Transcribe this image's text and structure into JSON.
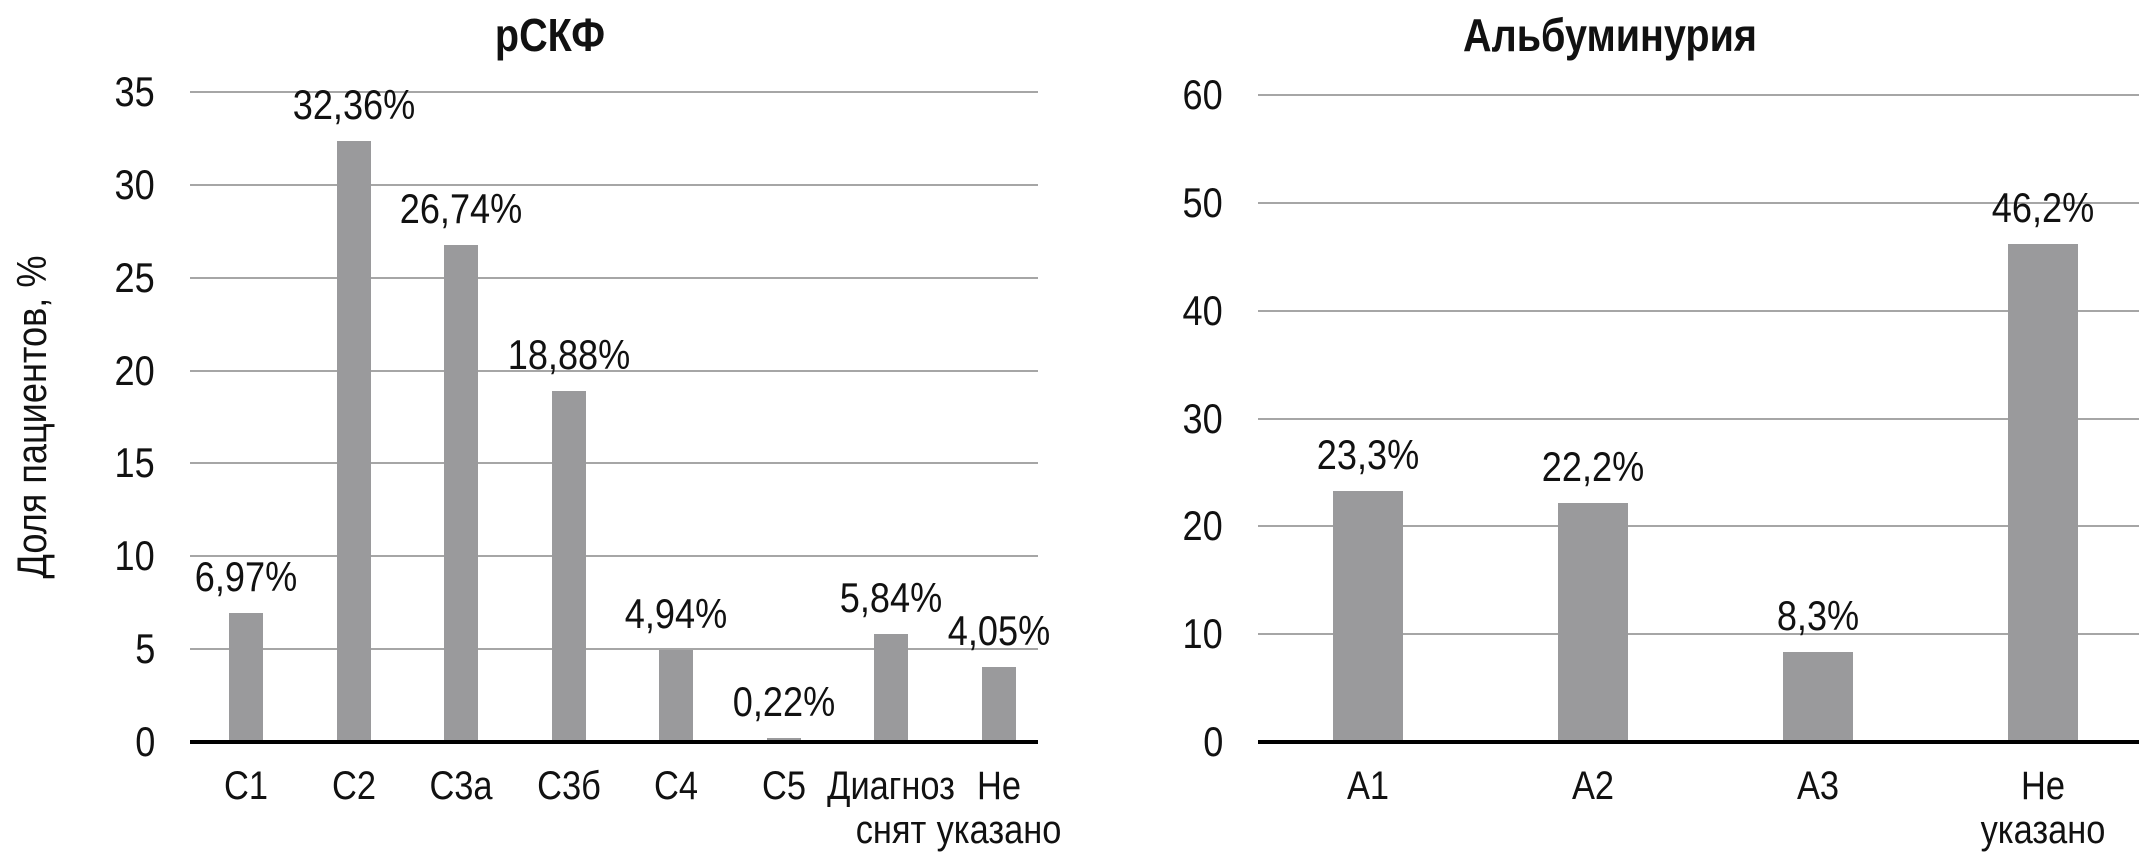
{
  "page": {
    "background": "#ffffff"
  },
  "chart_data": [
    {
      "type": "bar",
      "title": "рСКФ",
      "ylabel": "Доля пациентов, %",
      "xlabel": "",
      "categories": [
        "С1",
        "С2",
        "С3а",
        "С3б",
        "С4",
        "С5",
        "Диагноз\nснят",
        "Не\nуказано"
      ],
      "values": [
        6.97,
        32.36,
        26.74,
        18.88,
        4.94,
        0.22,
        5.84,
        4.05
      ],
      "value_labels": [
        "6,97%",
        "32,36%",
        "26,74%",
        "18,88%",
        "4,94%",
        "0,22%",
        "5,84%",
        "4,05%"
      ],
      "ylim": [
        0,
        35
      ],
      "yticks": [
        0,
        5,
        10,
        15,
        20,
        25,
        30,
        35
      ],
      "grid": true,
      "legend": "none",
      "bar_color": "#9a9a9c",
      "gridline_color": "#a6a6a6",
      "axis_color": "#000000"
    },
    {
      "type": "bar",
      "title": "Альбуминурия",
      "ylabel": "",
      "xlabel": "",
      "categories": [
        "А1",
        "А2",
        "А3",
        "Не\nуказано"
      ],
      "values": [
        23.3,
        22.2,
        8.3,
        46.2
      ],
      "value_labels": [
        "23,3%",
        "22,2%",
        "8,3%",
        "46,2%"
      ],
      "ylim": [
        0,
        60
      ],
      "yticks": [
        0,
        10,
        20,
        30,
        40,
        50,
        60
      ],
      "grid": true,
      "legend": "none",
      "bar_color": "#9a9a9c",
      "gridline_color": "#a6a6a6",
      "axis_color": "#000000"
    }
  ]
}
